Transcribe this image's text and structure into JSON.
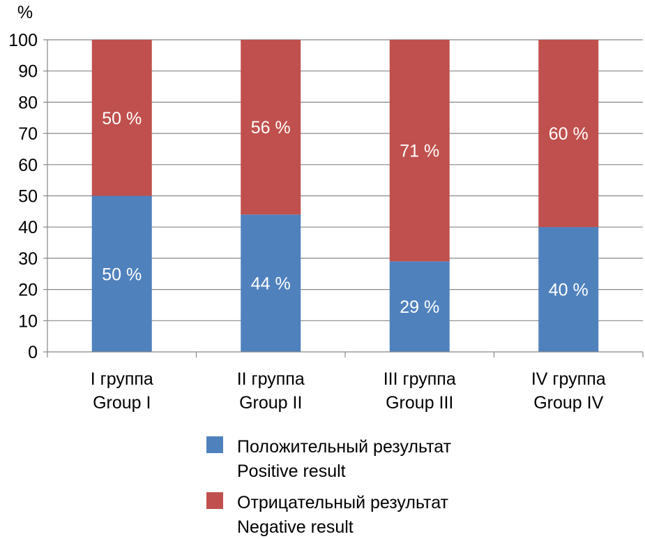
{
  "chart_data": {
    "type": "bar",
    "stacked": true,
    "y_unit_label": "%",
    "ylim": [
      0,
      100
    ],
    "yticks": [
      0,
      10,
      20,
      30,
      40,
      50,
      60,
      70,
      80,
      90,
      100
    ],
    "grid": true,
    "categories": [
      [
        "I группа",
        "Group I"
      ],
      [
        "II группа",
        "Group II"
      ],
      [
        "III группа",
        "Group III"
      ],
      [
        "IV группа",
        "Group IV"
      ]
    ],
    "series": [
      {
        "name": [
          "Положительный результат",
          "Positive result"
        ],
        "color": "#4f81bd",
        "values": [
          50,
          44,
          29,
          40
        ],
        "labels": [
          "50 %",
          "44 %",
          "29 %",
          "40 %"
        ]
      },
      {
        "name": [
          "Отрицательный результат",
          "Negative result"
        ],
        "color": "#c0504d",
        "values": [
          50,
          56,
          71,
          60
        ],
        "labels": [
          "50 %",
          "56 %",
          "71 %",
          "60 %"
        ]
      }
    ],
    "legend_position": "bottom"
  }
}
